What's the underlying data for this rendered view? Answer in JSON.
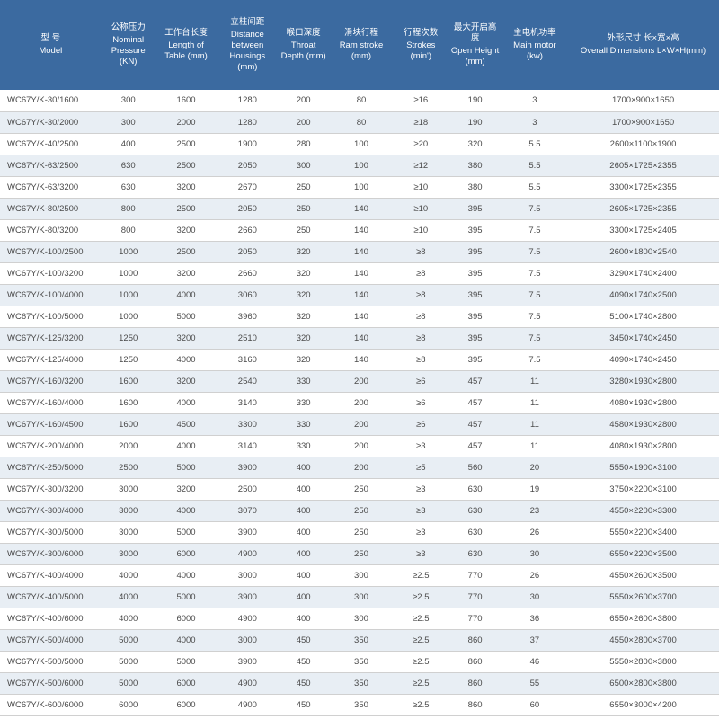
{
  "table": {
    "type": "table",
    "header_bg": "#3b6aa0",
    "header_fg": "#ffffff",
    "row_bg_odd": "#ffffff",
    "row_bg_even": "#e8eef4",
    "border_color": "#d0d0d0",
    "text_color": "#4a4a4a",
    "header_fontsize": 9.5,
    "cell_fontsize": 9.5,
    "columns": [
      {
        "cn": "型 号",
        "en": "Model",
        "width_pct": 14,
        "align": "left"
      },
      {
        "cn": "公称压力",
        "en": "Nominal Pressure (KN)",
        "width_pct": 7.5,
        "align": "center"
      },
      {
        "cn": "工作台长度",
        "en": "Length of Table (mm)",
        "width_pct": 8.5,
        "align": "center"
      },
      {
        "cn": "立柱间距",
        "en": "Distance between Housings (mm)",
        "width_pct": 8.5,
        "align": "center"
      },
      {
        "cn": "喉口深度",
        "en": "Throat Depth (mm)",
        "width_pct": 7,
        "align": "center"
      },
      {
        "cn": "滑块行程",
        "en": "Ram stroke (mm)",
        "width_pct": 9,
        "align": "center"
      },
      {
        "cn": "行程次数",
        "en": "Strokes (min')",
        "width_pct": 7.5,
        "align": "center"
      },
      {
        "cn": "最大开启高度",
        "en": "Open Height (mm)",
        "width_pct": 7.5,
        "align": "center"
      },
      {
        "cn": "主电机功率",
        "en": "Main motor (kw)",
        "width_pct": 9,
        "align": "center"
      },
      {
        "cn": "外形尺寸 长×宽×高",
        "en": "Overall Dimensions L×W×H(mm)",
        "width_pct": 21,
        "align": "center"
      }
    ],
    "rows": [
      [
        "WC67Y/K-30/1600",
        "300",
        "1600",
        "1280",
        "200",
        "80",
        "≥16",
        "190",
        "3",
        "1700×900×1650"
      ],
      [
        "WC67Y/K-30/2000",
        "300",
        "2000",
        "1280",
        "200",
        "80",
        "≥18",
        "190",
        "3",
        "1700×900×1650"
      ],
      [
        "WC67Y/K-40/2500",
        "400",
        "2500",
        "1900",
        "280",
        "100",
        "≥20",
        "320",
        "5.5",
        "2600×1100×1900"
      ],
      [
        "WC67Y/K-63/2500",
        "630",
        "2500",
        "2050",
        "300",
        "100",
        "≥12",
        "380",
        "5.5",
        "2605×1725×2355"
      ],
      [
        "WC67Y/K-63/3200",
        "630",
        "3200",
        "2670",
        "250",
        "100",
        "≥10",
        "380",
        "5.5",
        "3300×1725×2355"
      ],
      [
        "WC67Y/K-80/2500",
        "800",
        "2500",
        "2050",
        "250",
        "140",
        "≥10",
        "395",
        "7.5",
        "2605×1725×2355"
      ],
      [
        "WC67Y/K-80/3200",
        "800",
        "3200",
        "2660",
        "250",
        "140",
        "≥10",
        "395",
        "7.5",
        "3300×1725×2405"
      ],
      [
        "WC67Y/K-100/2500",
        "1000",
        "2500",
        "2050",
        "320",
        "140",
        "≥8",
        "395",
        "7.5",
        "2600×1800×2540"
      ],
      [
        "WC67Y/K-100/3200",
        "1000",
        "3200",
        "2660",
        "320",
        "140",
        "≥8",
        "395",
        "7.5",
        "3290×1740×2400"
      ],
      [
        "WC67Y/K-100/4000",
        "1000",
        "4000",
        "3060",
        "320",
        "140",
        "≥8",
        "395",
        "7.5",
        "4090×1740×2500"
      ],
      [
        "WC67Y/K-100/5000",
        "1000",
        "5000",
        "3960",
        "320",
        "140",
        "≥8",
        "395",
        "7.5",
        "5100×1740×2800"
      ],
      [
        "WC67Y/K-125/3200",
        "1250",
        "3200",
        "2510",
        "320",
        "140",
        "≥8",
        "395",
        "7.5",
        "3450×1740×2450"
      ],
      [
        "WC67Y/K-125/4000",
        "1250",
        "4000",
        "3160",
        "320",
        "140",
        "≥8",
        "395",
        "7.5",
        "4090×1740×2450"
      ],
      [
        "WC67Y/K-160/3200",
        "1600",
        "3200",
        "2540",
        "330",
        "200",
        "≥6",
        "457",
        "11",
        "3280×1930×2800"
      ],
      [
        "WC67Y/K-160/4000",
        "1600",
        "4000",
        "3140",
        "330",
        "200",
        "≥6",
        "457",
        "11",
        "4080×1930×2800"
      ],
      [
        "WC67Y/K-160/4500",
        "1600",
        "4500",
        "3300",
        "330",
        "200",
        "≥6",
        "457",
        "11",
        "4580×1930×2800"
      ],
      [
        "WC67Y/K-200/4000",
        "2000",
        "4000",
        "3140",
        "330",
        "200",
        "≥3",
        "457",
        "11",
        "4080×1930×2800"
      ],
      [
        "WC67Y/K-250/5000",
        "2500",
        "5000",
        "3900",
        "400",
        "200",
        "≥5",
        "560",
        "20",
        "5550×1900×3100"
      ],
      [
        "WC67Y/K-300/3200",
        "3000",
        "3200",
        "2500",
        "400",
        "250",
        "≥3",
        "630",
        "19",
        "3750×2200×3100"
      ],
      [
        "WC67Y/K-300/4000",
        "3000",
        "4000",
        "3070",
        "400",
        "250",
        "≥3",
        "630",
        "23",
        "4550×2200×3300"
      ],
      [
        "WC67Y/K-300/5000",
        "3000",
        "5000",
        "3900",
        "400",
        "250",
        "≥3",
        "630",
        "26",
        "5550×2200×3400"
      ],
      [
        "WC67Y/K-300/6000",
        "3000",
        "6000",
        "4900",
        "400",
        "250",
        "≥3",
        "630",
        "30",
        "6550×2200×3500"
      ],
      [
        "WC67Y/K-400/4000",
        "4000",
        "4000",
        "3000",
        "400",
        "300",
        "≥2.5",
        "770",
        "26",
        "4550×2600×3500"
      ],
      [
        "WC67Y/K-400/5000",
        "4000",
        "5000",
        "3900",
        "400",
        "300",
        "≥2.5",
        "770",
        "30",
        "5550×2600×3700"
      ],
      [
        "WC67Y/K-400/6000",
        "4000",
        "6000",
        "4900",
        "400",
        "300",
        "≥2.5",
        "770",
        "36",
        "6550×2600×3800"
      ],
      [
        "WC67Y/K-500/4000",
        "5000",
        "4000",
        "3000",
        "450",
        "350",
        "≥2.5",
        "860",
        "37",
        "4550×2800×3700"
      ],
      [
        "WC67Y/K-500/5000",
        "5000",
        "5000",
        "3900",
        "450",
        "350",
        "≥2.5",
        "860",
        "46",
        "5550×2800×3800"
      ],
      [
        "WC67Y/K-500/6000",
        "5000",
        "6000",
        "4900",
        "450",
        "350",
        "≥2.5",
        "860",
        "55",
        "6500×2800×3800"
      ],
      [
        "WC67Y/K-600/6000",
        "6000",
        "6000",
        "4900",
        "450",
        "350",
        "≥2.5",
        "860",
        "60",
        "6550×3000×4200"
      ]
    ]
  }
}
